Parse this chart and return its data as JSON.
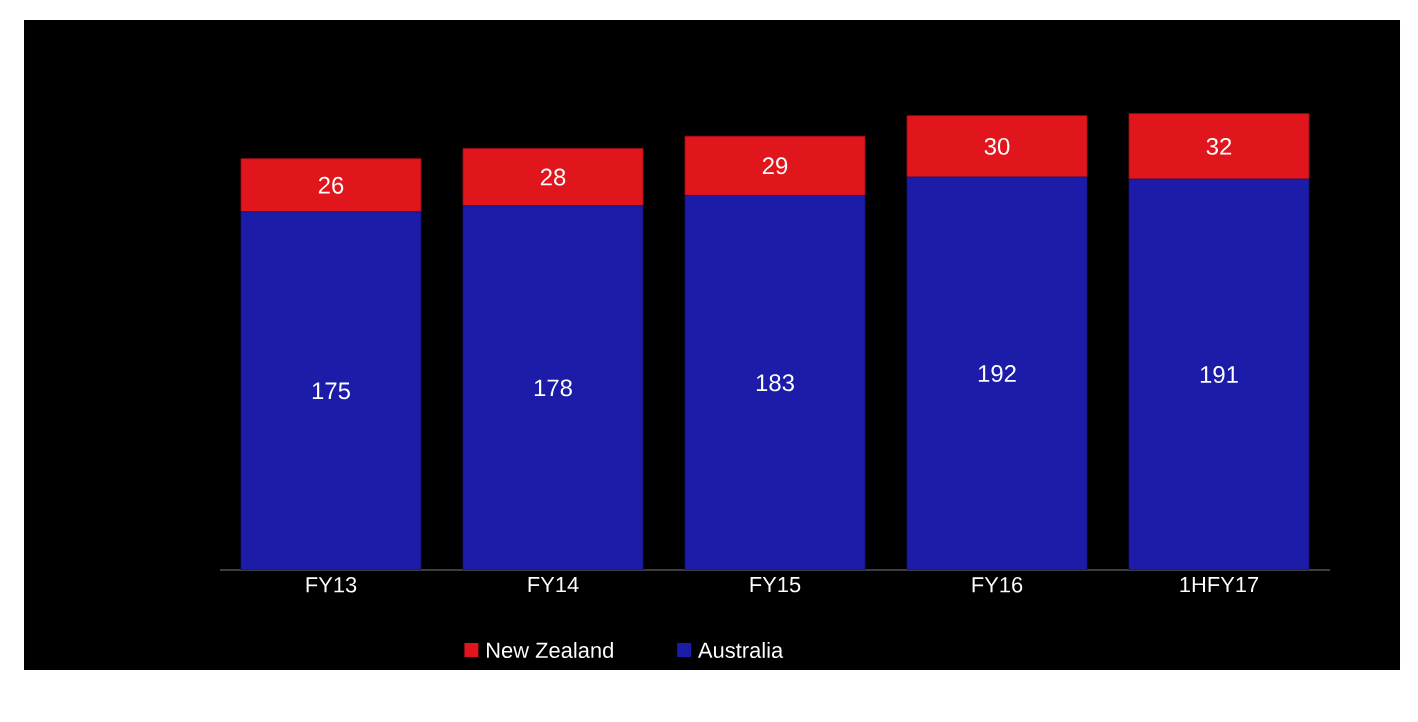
{
  "chart_data": {
    "type": "bar",
    "stacked": true,
    "categories": [
      "FY13",
      "FY14",
      "FY15",
      "FY16",
      "1HFY17"
    ],
    "series": [
      {
        "name": "Australia",
        "color": "#1c1ca8",
        "values": [
          175,
          178,
          183,
          192,
          191
        ]
      },
      {
        "name": "New Zealand",
        "color": "#e0161c",
        "values": [
          26,
          28,
          29,
          30,
          32
        ]
      }
    ],
    "data_labels": true,
    "legend": "bottom"
  }
}
